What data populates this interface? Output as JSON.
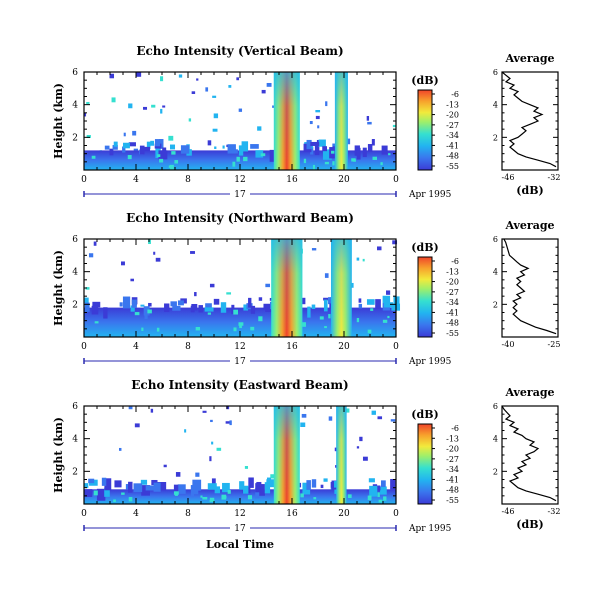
{
  "panels": [
    {
      "title": "Echo Intensity (Vertical Beam)",
      "y_tick_labels": [
        "6",
        "4",
        "2"
      ],
      "x_tick_labels": [
        "0",
        "4",
        "8",
        "12",
        "16",
        "20",
        "0"
      ],
      "date_label": "17",
      "month_year": "Apr 1995",
      "colorbar_title": "(dB)",
      "colorbar_labels": [
        "-6",
        "-13",
        "-20",
        "-27",
        "-34",
        "-41",
        "-48",
        "-55"
      ],
      "avg_title": "Average",
      "avg_xtick_labels": [
        "-46",
        "-32"
      ],
      "avg_ytick_labels": [
        "6",
        "4",
        "2"
      ],
      "avg_xlabel": "(dB)"
    },
    {
      "title": "Echo Intensity (Northward Beam)",
      "y_tick_labels": [
        "6",
        "4",
        "2"
      ],
      "x_tick_labels": [
        "0",
        "4",
        "8",
        "12",
        "16",
        "20",
        "0"
      ],
      "date_label": "17",
      "month_year": "Apr 1995",
      "colorbar_title": "(dB)",
      "colorbar_labels": [
        "-6",
        "-13",
        "-20",
        "-27",
        "-34",
        "-41",
        "-48",
        "-55"
      ],
      "avg_title": "Average",
      "avg_xtick_labels": [
        "-40",
        "-25"
      ],
      "avg_ytick_labels": [
        "6",
        "4",
        "2"
      ],
      "avg_xlabel": ""
    },
    {
      "title": "Echo Intensity (Eastward Beam)",
      "y_tick_labels": [
        "6",
        "4",
        "2"
      ],
      "x_tick_labels": [
        "0",
        "4",
        "8",
        "12",
        "16",
        "20",
        "0"
      ],
      "date_label": "17",
      "month_year": "Apr 1995",
      "colorbar_title": "(dB)",
      "colorbar_labels": [
        "-6",
        "-13",
        "-20",
        "-27",
        "-34",
        "-41",
        "-48",
        "-55"
      ],
      "avg_title": "Average",
      "avg_xtick_labels": [
        "-46",
        "-32"
      ],
      "avg_ytick_labels": [
        "6",
        "4",
        "2"
      ],
      "avg_xlabel": "(dB)"
    }
  ],
  "y_axis_label": "Height (km)",
  "x_axis_label": "Local Time",
  "chart_data": [
    {
      "type": "heatmap",
      "title": "Echo Intensity (Vertical Beam)",
      "xlabel": "",
      "ylabel": "Height (km)",
      "xlim": [
        0,
        24
      ],
      "ylim": [
        0,
        6
      ],
      "colorbar": {
        "title": "(dB)",
        "range": [
          -55,
          -6
        ]
      },
      "colormap": [
        "#3b3bd6",
        "#3a76ee",
        "#22b4f0",
        "#35e0d0",
        "#9fef6a",
        "#f2ea3c",
        "#f7a22c",
        "#f0442a"
      ],
      "features": [
        {
          "kind": "surface_band",
          "x_range": [
            0,
            24
          ],
          "height_top_km": 1.2,
          "db": -48
        },
        {
          "kind": "storm_column",
          "x_range": [
            14.6,
            16.6
          ],
          "height_top_km": 6,
          "peak_db": -6
        },
        {
          "kind": "storm_column",
          "x_range": [
            19.3,
            20.3
          ],
          "height_top_km": 6,
          "peak_db": -13
        }
      ]
    },
    {
      "type": "heatmap",
      "title": "Echo Intensity (Northward Beam)",
      "xlabel": "",
      "ylabel": "Height (km)",
      "xlim": [
        0,
        24
      ],
      "ylim": [
        0,
        6
      ],
      "colorbar": {
        "title": "(dB)",
        "range": [
          -55,
          -6
        ]
      },
      "colormap": [
        "#3b3bd6",
        "#3a76ee",
        "#22b4f0",
        "#35e0d0",
        "#9fef6a",
        "#f2ea3c",
        "#f7a22c",
        "#f0442a"
      ],
      "features": [
        {
          "kind": "surface_band",
          "x_range": [
            0,
            24
          ],
          "height_top_km": 1.8,
          "db": -45
        },
        {
          "kind": "storm_column",
          "x_range": [
            14.4,
            16.8
          ],
          "height_top_km": 6,
          "peak_db": -6
        },
        {
          "kind": "storm_column",
          "x_range": [
            19.0,
            20.6
          ],
          "height_top_km": 6,
          "peak_db": -13
        }
      ]
    },
    {
      "type": "heatmap",
      "title": "Echo Intensity (Eastward Beam)",
      "xlabel": "Local Time",
      "ylabel": "Height (km)",
      "xlim": [
        0,
        24
      ],
      "ylim": [
        0,
        6
      ],
      "colorbar": {
        "title": "(dB)",
        "range": [
          -55,
          -6
        ]
      },
      "colormap": [
        "#3b3bd6",
        "#3a76ee",
        "#22b4f0",
        "#35e0d0",
        "#9fef6a",
        "#f2ea3c",
        "#f7a22c",
        "#f0442a"
      ],
      "features": [
        {
          "kind": "surface_band",
          "x_range": [
            0,
            24
          ],
          "height_top_km": 0.9,
          "db": -48
        },
        {
          "kind": "storm_column",
          "x_range": [
            14.6,
            16.6
          ],
          "height_top_km": 6,
          "peak_db": -6
        },
        {
          "kind": "storm_column",
          "x_range": [
            19.4,
            20.2
          ],
          "height_top_km": 6,
          "peak_db": -13
        }
      ]
    },
    {
      "type": "line",
      "title": "Average",
      "xlabel": "(dB)",
      "ylabel": "",
      "xlim": [
        -46,
        -32
      ],
      "ylim": [
        0,
        6
      ],
      "points": [
        [
          -32.5,
          0.2
        ],
        [
          -34,
          0.4
        ],
        [
          -37,
          0.6
        ],
        [
          -40,
          0.8
        ],
        [
          -42,
          1.0
        ],
        [
          -43,
          1.2
        ],
        [
          -44,
          1.4
        ],
        [
          -43,
          1.6
        ],
        [
          -44,
          1.8
        ],
        [
          -42,
          2.0
        ],
        [
          -41,
          2.2
        ],
        [
          -40,
          2.4
        ],
        [
          -41,
          2.6
        ],
        [
          -39,
          2.8
        ],
        [
          -37,
          3.0
        ],
        [
          -38,
          3.2
        ],
        [
          -36,
          3.4
        ],
        [
          -38,
          3.6
        ],
        [
          -37,
          3.8
        ],
        [
          -39,
          4.0
        ],
        [
          -41,
          4.2
        ],
        [
          -42,
          4.4
        ],
        [
          -43,
          4.6
        ],
        [
          -42,
          4.8
        ],
        [
          -44,
          5.0
        ],
        [
          -43,
          5.2
        ],
        [
          -45,
          5.4
        ],
        [
          -44,
          5.6
        ],
        [
          -45,
          5.8
        ],
        [
          -46,
          6.0
        ]
      ]
    },
    {
      "type": "line",
      "title": "Average",
      "xlabel": "",
      "ylabel": "",
      "xlim": [
        -40,
        -25
      ],
      "ylim": [
        0,
        6
      ],
      "points": [
        [
          -25.5,
          0.2
        ],
        [
          -28,
          0.4
        ],
        [
          -31,
          0.6
        ],
        [
          -33,
          0.8
        ],
        [
          -35,
          1.0
        ],
        [
          -36,
          1.2
        ],
        [
          -37,
          1.4
        ],
        [
          -36,
          1.6
        ],
        [
          -37,
          1.8
        ],
        [
          -36,
          2.0
        ],
        [
          -37,
          2.2
        ],
        [
          -35,
          2.4
        ],
        [
          -36,
          2.6
        ],
        [
          -34,
          2.8
        ],
        [
          -35,
          3.0
        ],
        [
          -36,
          3.2
        ],
        [
          -35,
          3.4
        ],
        [
          -36,
          3.6
        ],
        [
          -34,
          3.8
        ],
        [
          -35,
          4.0
        ],
        [
          -33,
          4.2
        ],
        [
          -35,
          4.4
        ],
        [
          -36,
          4.6
        ],
        [
          -37,
          4.8
        ],
        [
          -38,
          5.0
        ],
        [
          -38.5,
          5.4
        ],
        [
          -39,
          5.8
        ],
        [
          -39.5,
          6.0
        ]
      ]
    },
    {
      "type": "line",
      "title": "Average",
      "xlabel": "(dB)",
      "ylabel": "",
      "xlim": [
        -46,
        -32
      ],
      "ylim": [
        0,
        6
      ],
      "points": [
        [
          -32.5,
          0.2
        ],
        [
          -34,
          0.4
        ],
        [
          -37,
          0.6
        ],
        [
          -40,
          0.8
        ],
        [
          -42,
          1.0
        ],
        [
          -43,
          1.2
        ],
        [
          -44,
          1.4
        ],
        [
          -42,
          1.6
        ],
        [
          -43,
          1.8
        ],
        [
          -41,
          2.0
        ],
        [
          -42,
          2.2
        ],
        [
          -40,
          2.4
        ],
        [
          -41,
          2.6
        ],
        [
          -39,
          2.8
        ],
        [
          -40,
          3.0
        ],
        [
          -38,
          3.2
        ],
        [
          -37,
          3.4
        ],
        [
          -39,
          3.6
        ],
        [
          -38,
          3.8
        ],
        [
          -40,
          4.0
        ],
        [
          -41,
          4.2
        ],
        [
          -43,
          4.4
        ],
        [
          -42,
          4.6
        ],
        [
          -44,
          4.8
        ],
        [
          -43,
          5.0
        ],
        [
          -45,
          5.2
        ],
        [
          -44,
          5.4
        ],
        [
          -45.5,
          5.8
        ],
        [
          -46,
          6.0
        ]
      ]
    }
  ]
}
